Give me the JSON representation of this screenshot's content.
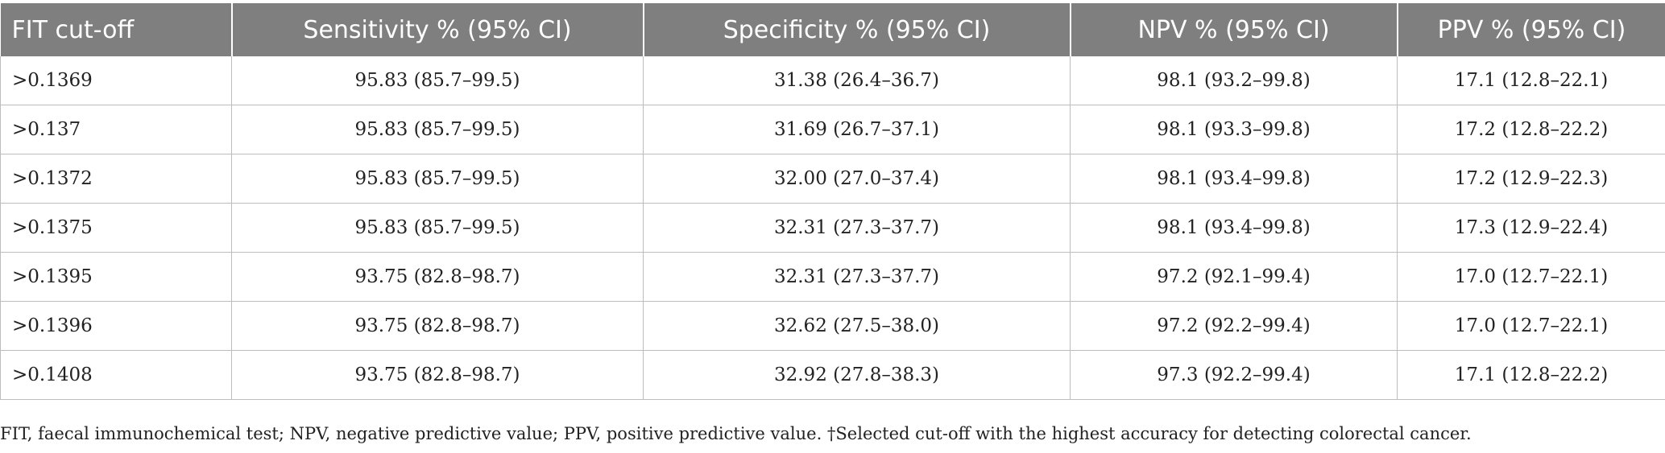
{
  "table": {
    "headers": [
      "FIT cut-off",
      "Sensitivity % (95% CI)",
      "Specificity % (95% CI)",
      "NPV % (95% CI)",
      "PPV % (95% CI)"
    ],
    "rows": [
      [
        ">0.1369",
        "95.83 (85.7–99.5)",
        "31.38 (26.4–36.7)",
        "98.1 (93.2–99.8)",
        "17.1 (12.8–22.1)"
      ],
      [
        ">0.137",
        "95.83 (85.7–99.5)",
        "31.69 (26.7–37.1)",
        "98.1 (93.3–99.8)",
        "17.2 (12.8–22.2)"
      ],
      [
        ">0.1372",
        "95.83 (85.7–99.5)",
        "32.00 (27.0–37.4)",
        "98.1 (93.4–99.8)",
        "17.2 (12.9–22.3)"
      ],
      [
        ">0.1375",
        "95.83 (85.7–99.5)",
        "32.31 (27.3–37.7)",
        "98.1 (93.4–99.8)",
        "17.3 (12.9–22.4)"
      ],
      [
        ">0.1395",
        "93.75 (82.8–98.7)",
        "32.31 (27.3–37.7)",
        "97.2 (92.1–99.4)",
        "17.0 (12.7–22.1)"
      ],
      [
        ">0.1396",
        "93.75 (82.8–98.7)",
        "32.62 (27.5–38.0)",
        "97.2 (92.2–99.4)",
        "17.0 (12.7–22.1)"
      ],
      [
        ">0.1408",
        "93.75 (82.8–98.7)",
        "32.92 (27.8–38.3)",
        "97.3 (92.2–99.4)",
        "17.1 (12.8–22.2)"
      ]
    ]
  },
  "footnote": "FIT, faecal immunochemical test; NPV, negative predictive value; PPV, positive predictive value. †Selected cut-off with the highest accuracy for detecting colorectal cancer.",
  "colors": {
    "header_bg": "#7f7f7f",
    "header_text": "#ffffff",
    "grid_line": "#bdbdbd"
  }
}
